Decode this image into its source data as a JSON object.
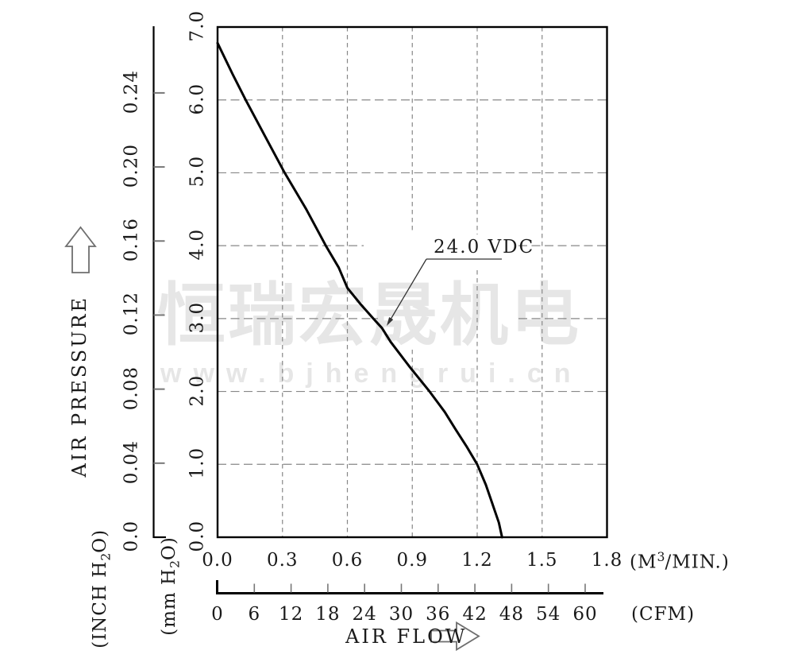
{
  "watermark": {
    "line1": "恒瑞宏晟机电",
    "line2": "www.bjhengrui.cn"
  },
  "labels": {
    "air_pressure": "AIR PRESSURE",
    "air_flow": "AIR FLOW",
    "annotation": "24.0 VDC",
    "inch_unit": {
      "pre": "(INCH H",
      "sub": "2",
      "post": "O)"
    },
    "mm_unit": {
      "pre": "(mm H",
      "sub": "2",
      "post": "O)"
    },
    "m3min_unit": {
      "pre": "(M",
      "sup": "3",
      "post": "/MIN.)"
    },
    "cfm_unit": "(CFM)"
  },
  "colors": {
    "curve": "#000000",
    "axis": "#000000",
    "grid": "#878787",
    "tick_mark": "#777777",
    "arrow_outline": "#6e6e6e",
    "leader": "#333333",
    "watermark": "#e6e6e6",
    "text": "#1a1a1a"
  },
  "chart_data": {
    "type": "line",
    "title": "",
    "grid": "dashed",
    "legend_position": "annotation-on-curve",
    "x_axis_primary": {
      "unit": "(M3/MIN.)",
      "tick_labels": [
        "0.0",
        "0.3",
        "0.6",
        "0.9",
        "1.2",
        "1.5",
        "1.8"
      ],
      "tick_values": [
        0.0,
        0.3,
        0.6,
        0.9,
        1.2,
        1.5,
        1.8
      ],
      "range": [
        0.0,
        1.8
      ]
    },
    "x_axis_secondary": {
      "unit": "(CFM)",
      "tick_labels": [
        "0",
        "6",
        "12",
        "18",
        "24",
        "30",
        "36",
        "42",
        "48",
        "54",
        "60"
      ],
      "tick_values": [
        0,
        6,
        12,
        18,
        24,
        30,
        36,
        42,
        48,
        54,
        60
      ]
    },
    "y_axis_primary": {
      "unit": "(mm H2O)",
      "tick_labels": [
        "0.0",
        "1.0",
        "2.0",
        "3.0",
        "4.0",
        "5.0",
        "6.0",
        "7.0"
      ],
      "tick_values": [
        0,
        1,
        2,
        3,
        4,
        5,
        6,
        7
      ],
      "range": [
        0.0,
        7.0
      ],
      "title": "AIR PRESSURE"
    },
    "y_axis_secondary": {
      "unit": "(INCH H2O)",
      "tick_labels": [
        "0.0",
        "0.04",
        "0.08",
        "0.12",
        "0.16",
        "0.20",
        "0.24"
      ],
      "tick_values": [
        0.0,
        0.04,
        0.08,
        0.12,
        0.16,
        0.2,
        0.24
      ]
    },
    "series": [
      {
        "name": "24.0 VDC",
        "points": [
          [
            0.0,
            6.78
          ],
          [
            0.07,
            6.35
          ],
          [
            0.13,
            6.0
          ],
          [
            0.22,
            5.5
          ],
          [
            0.31,
            5.0
          ],
          [
            0.41,
            4.5
          ],
          [
            0.5,
            4.0
          ],
          [
            0.56,
            3.7
          ],
          [
            0.6,
            3.42
          ],
          [
            0.66,
            3.2
          ],
          [
            0.72,
            3.0
          ],
          [
            0.76,
            2.87
          ],
          [
            0.8,
            2.68
          ],
          [
            0.89,
            2.33
          ],
          [
            0.98,
            2.0
          ],
          [
            1.05,
            1.72
          ],
          [
            1.1,
            1.48
          ],
          [
            1.15,
            1.25
          ],
          [
            1.2,
            1.0
          ],
          [
            1.24,
            0.72
          ],
          [
            1.27,
            0.46
          ],
          [
            1.3,
            0.2
          ],
          [
            1.315,
            0.0
          ]
        ]
      }
    ]
  }
}
